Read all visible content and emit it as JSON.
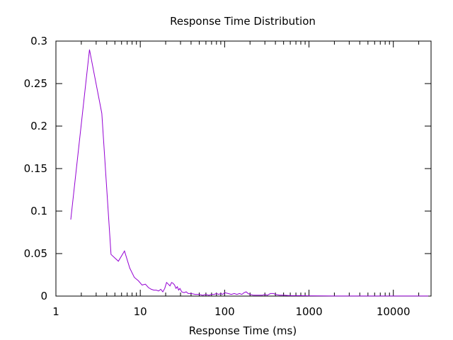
{
  "chart_data": {
    "type": "line",
    "title": "Response Time Distribution",
    "xlabel": "Response Time (ms)",
    "ylabel": "",
    "xscale": "log",
    "xlim": [
      1,
      28000
    ],
    "ylim": [
      0,
      0.3
    ],
    "grid": false,
    "legend": "none",
    "x_ticks": [
      {
        "value": 1,
        "label": "1"
      },
      {
        "value": 10,
        "label": "10"
      },
      {
        "value": 100,
        "label": "100"
      },
      {
        "value": 1000,
        "label": "1000"
      },
      {
        "value": 10000,
        "label": "10000"
      }
    ],
    "y_ticks": [
      {
        "value": 0,
        "label": "0"
      },
      {
        "value": 0.05,
        "label": "0.05"
      },
      {
        "value": 0.1,
        "label": "0.1"
      },
      {
        "value": 0.15,
        "label": "0.15"
      },
      {
        "value": 0.2,
        "label": "0.2"
      },
      {
        "value": 0.25,
        "label": "0.25"
      },
      {
        "value": 0.3,
        "label": "0.3"
      }
    ],
    "series": [
      {
        "color": "#9400d3",
        "points": [
          [
            1.5,
            0.09
          ],
          [
            2.5,
            0.29
          ],
          [
            3.5,
            0.215
          ],
          [
            4.5,
            0.049
          ],
          [
            5.5,
            0.041
          ],
          [
            6.5,
            0.053
          ],
          [
            7.5,
            0.033
          ],
          [
            8.5,
            0.022
          ],
          [
            9.5,
            0.018
          ],
          [
            10.5,
            0.013
          ],
          [
            11.5,
            0.014
          ],
          [
            12.5,
            0.01
          ],
          [
            13.5,
            0.008
          ],
          [
            14.5,
            0.007
          ],
          [
            15.5,
            0.007
          ],
          [
            16.5,
            0.006
          ],
          [
            17.5,
            0.008
          ],
          [
            18.5,
            0.005
          ],
          [
            19.5,
            0.009
          ],
          [
            20.5,
            0.016
          ],
          [
            21.5,
            0.014
          ],
          [
            22.5,
            0.012
          ],
          [
            23.5,
            0.016
          ],
          [
            24.5,
            0.015
          ],
          [
            25.5,
            0.013
          ],
          [
            26.5,
            0.009
          ],
          [
            27.5,
            0.011
          ],
          [
            28.5,
            0.007
          ],
          [
            29.5,
            0.009
          ],
          [
            31,
            0.005
          ],
          [
            33,
            0.004
          ],
          [
            35,
            0.005
          ],
          [
            37,
            0.003
          ],
          [
            40,
            0.003
          ],
          [
            45,
            0.002
          ],
          [
            50,
            0.002
          ],
          [
            55,
            0.001
          ],
          [
            60,
            0.002
          ],
          [
            65,
            0.001
          ],
          [
            70,
            0.002
          ],
          [
            75,
            0.002
          ],
          [
            80,
            0.003
          ],
          [
            85,
            0.002
          ],
          [
            90,
            0.003
          ],
          [
            95,
            0.002
          ],
          [
            100,
            0.004
          ],
          [
            110,
            0.003
          ],
          [
            120,
            0.002
          ],
          [
            130,
            0.003
          ],
          [
            140,
            0.002
          ],
          [
            150,
            0.003
          ],
          [
            160,
            0.002
          ],
          [
            170,
            0.004
          ],
          [
            180,
            0.005
          ],
          [
            190,
            0.003
          ],
          [
            200,
            0.002
          ],
          [
            220,
            0.001
          ],
          [
            250,
            0.001
          ],
          [
            280,
            0.001
          ],
          [
            300,
            0.002
          ],
          [
            320,
            0.001
          ],
          [
            350,
            0.003
          ],
          [
            380,
            0.003
          ],
          [
            400,
            0.002
          ],
          [
            450,
            0.001
          ],
          [
            500,
            0.001
          ],
          [
            600,
            0.0005
          ],
          [
            800,
            0.0005
          ],
          [
            1000,
            0.0003
          ],
          [
            1500,
            0.0002
          ],
          [
            2000,
            0.0001
          ],
          [
            5000,
            0.0001
          ],
          [
            10000,
            0.0001
          ],
          [
            26000,
            0.0001
          ]
        ]
      }
    ]
  }
}
